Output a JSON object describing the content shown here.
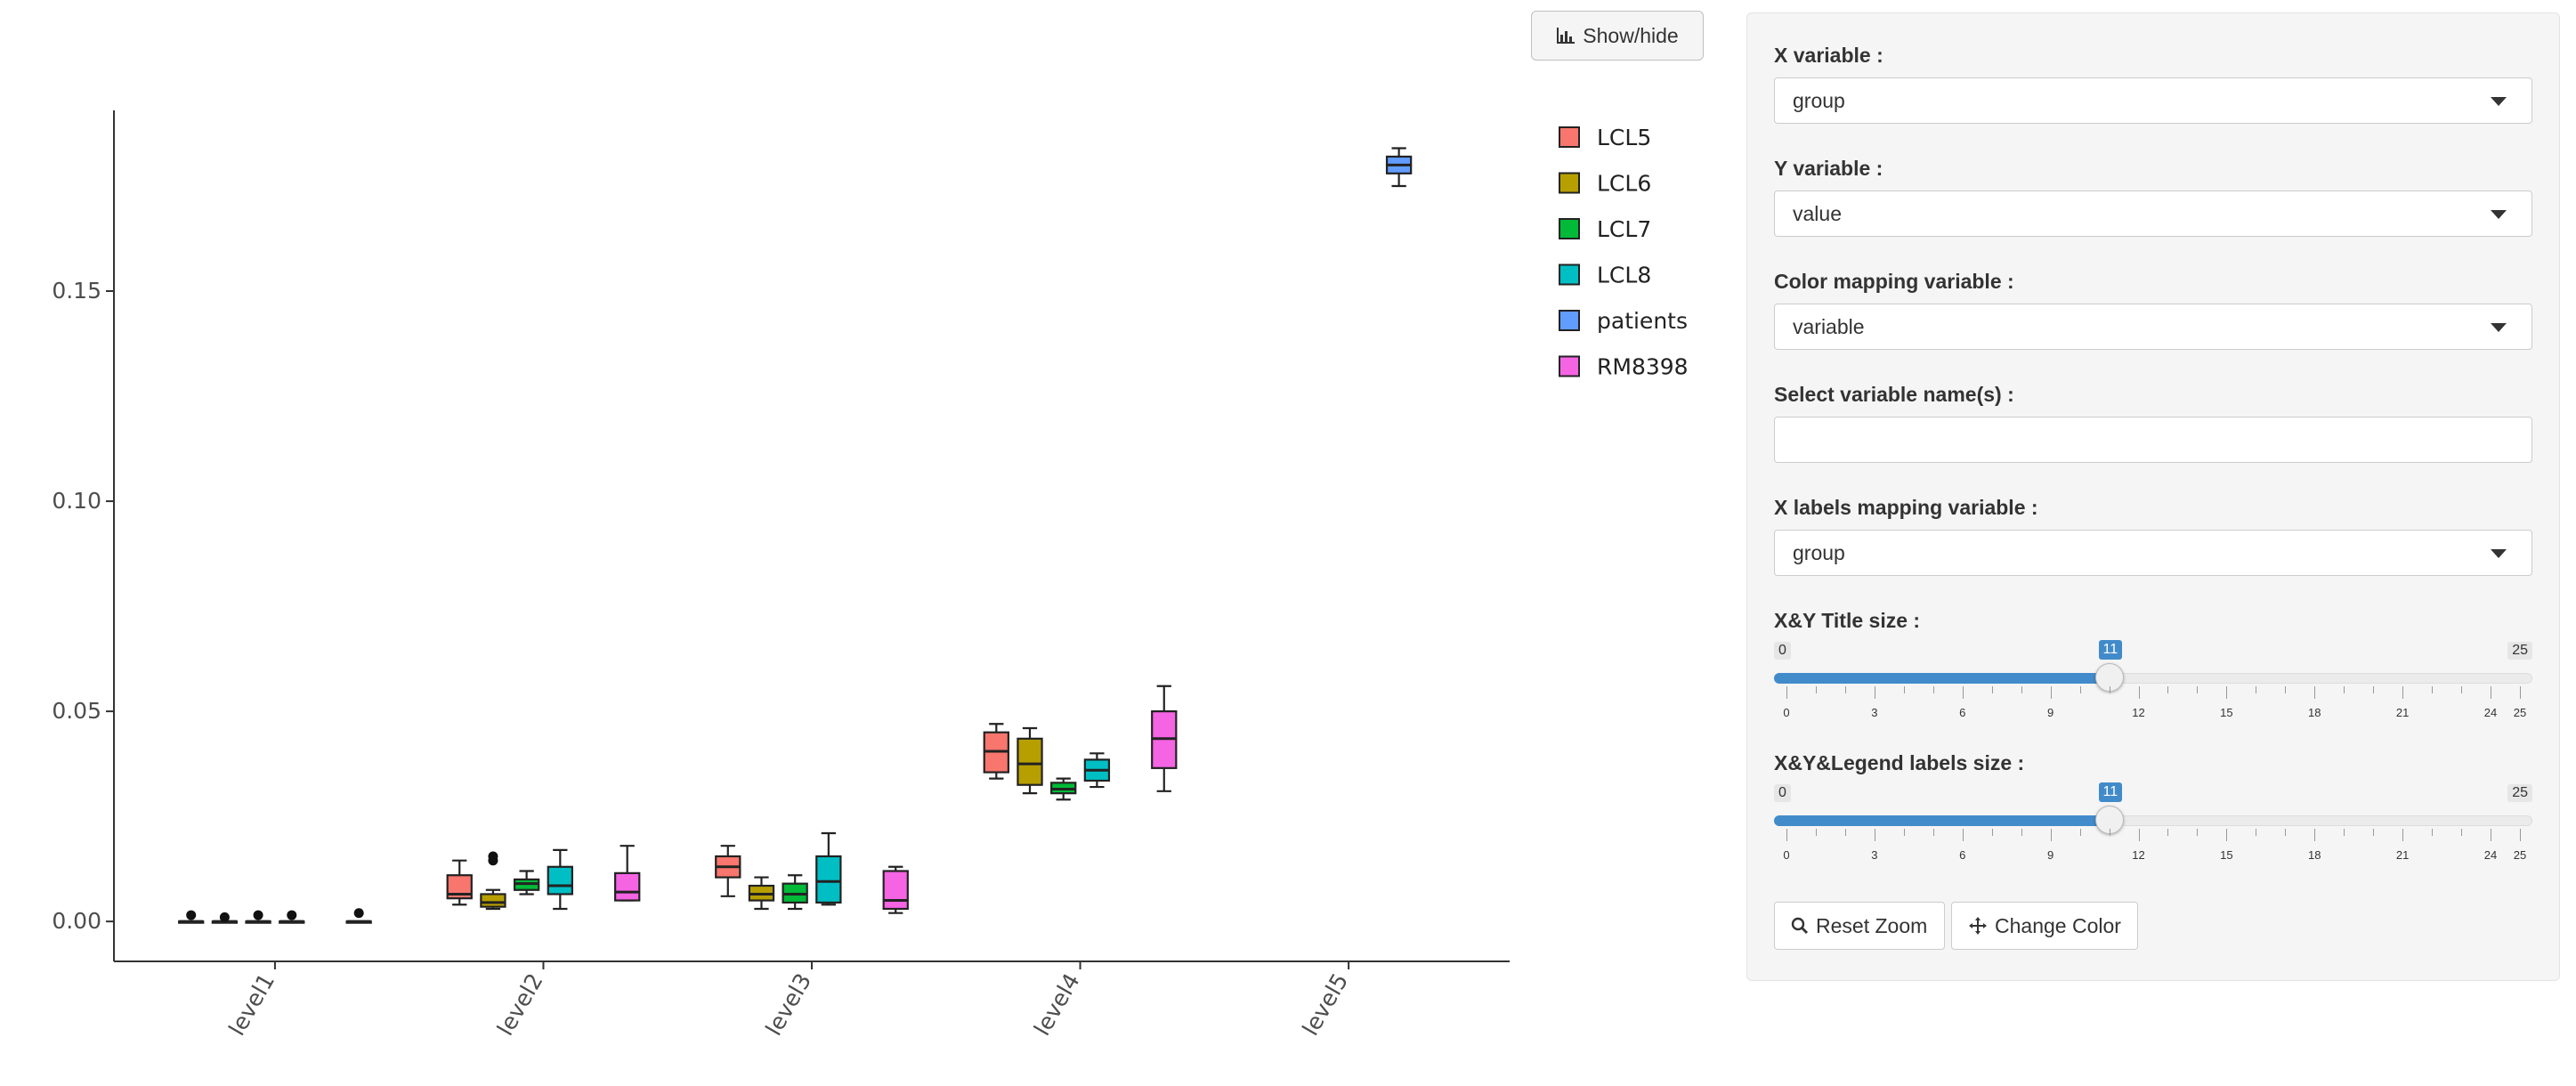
{
  "chart_data": {
    "type": "box",
    "categories": [
      "level1",
      "level2",
      "level3",
      "level4",
      "level5"
    ],
    "ylim": [
      -0.0095,
      0.193
    ],
    "y_ticks": [
      "0.00",
      "0.05",
      "0.10",
      "0.15"
    ],
    "y_tick_values": [
      0,
      0.05,
      0.1,
      0.15
    ],
    "xlabel": "",
    "ylabel": "",
    "legend": {
      "position": "right",
      "entries": [
        "LCL5",
        "LCL6",
        "LCL7",
        "LCL8",
        "patients",
        "RM8398"
      ]
    },
    "series": [
      {
        "name": "LCL5",
        "color": "#F8766D",
        "boxes": [
          {
            "category": "level1",
            "whisker_low": 0.0,
            "q1": 0.0,
            "median": 0.0,
            "q3": 0.0,
            "whisker_high": 0.0,
            "outliers": [
              0.0015
            ]
          },
          {
            "category": "level2",
            "whisker_low": 0.004,
            "q1": 0.0055,
            "median": 0.0065,
            "q3": 0.011,
            "whisker_high": 0.0145,
            "outliers": []
          },
          {
            "category": "level3",
            "whisker_low": 0.006,
            "q1": 0.0105,
            "median": 0.013,
            "q3": 0.0155,
            "whisker_high": 0.018,
            "outliers": []
          },
          {
            "category": "level4",
            "whisker_low": 0.034,
            "q1": 0.0355,
            "median": 0.0405,
            "q3": 0.045,
            "whisker_high": 0.047,
            "outliers": []
          }
        ]
      },
      {
        "name": "LCL6",
        "color": "#B79F00",
        "boxes": [
          {
            "category": "level1",
            "whisker_low": 0.0,
            "q1": 0.0,
            "median": 0.0,
            "q3": 0.0,
            "whisker_high": 0.0,
            "outliers": [
              0.001
            ]
          },
          {
            "category": "level2",
            "whisker_low": 0.003,
            "q1": 0.0035,
            "median": 0.0045,
            "q3": 0.0065,
            "whisker_high": 0.0075,
            "outliers": [
              0.0145,
              0.0155
            ]
          },
          {
            "category": "level3",
            "whisker_low": 0.003,
            "q1": 0.005,
            "median": 0.0065,
            "q3": 0.0085,
            "whisker_high": 0.0105,
            "outliers": []
          },
          {
            "category": "level4",
            "whisker_low": 0.0305,
            "q1": 0.0325,
            "median": 0.0375,
            "q3": 0.0435,
            "whisker_high": 0.046,
            "outliers": []
          }
        ]
      },
      {
        "name": "LCL7",
        "color": "#00BA38",
        "boxes": [
          {
            "category": "level1",
            "whisker_low": 0.0,
            "q1": 0.0,
            "median": 0.0,
            "q3": 0.0,
            "whisker_high": 0.0,
            "outliers": [
              0.0015
            ]
          },
          {
            "category": "level2",
            "whisker_low": 0.0065,
            "q1": 0.0075,
            "median": 0.009,
            "q3": 0.01,
            "whisker_high": 0.012,
            "outliers": []
          },
          {
            "category": "level3",
            "whisker_low": 0.003,
            "q1": 0.0045,
            "median": 0.0065,
            "q3": 0.009,
            "whisker_high": 0.011,
            "outliers": []
          },
          {
            "category": "level4",
            "whisker_low": 0.029,
            "q1": 0.0305,
            "median": 0.0315,
            "q3": 0.033,
            "whisker_high": 0.034,
            "outliers": []
          }
        ]
      },
      {
        "name": "LCL8",
        "color": "#00BFC4",
        "boxes": [
          {
            "category": "level1",
            "whisker_low": 0.0,
            "q1": 0.0,
            "median": 0.0,
            "q3": 0.0,
            "whisker_high": 0.0,
            "outliers": [
              0.0015
            ]
          },
          {
            "category": "level2",
            "whisker_low": 0.003,
            "q1": 0.0065,
            "median": 0.0085,
            "q3": 0.013,
            "whisker_high": 0.017,
            "outliers": []
          },
          {
            "category": "level3",
            "whisker_low": 0.004,
            "q1": 0.0045,
            "median": 0.0095,
            "q3": 0.0155,
            "whisker_high": 0.021,
            "outliers": []
          },
          {
            "category": "level4",
            "whisker_low": 0.032,
            "q1": 0.0335,
            "median": 0.036,
            "q3": 0.0385,
            "whisker_high": 0.04,
            "outliers": []
          }
        ]
      },
      {
        "name": "patients",
        "color": "#619CFF",
        "boxes": [
          {
            "category": "level5",
            "whisker_low": 0.175,
            "q1": 0.178,
            "median": 0.18,
            "q3": 0.182,
            "whisker_high": 0.184,
            "outliers": []
          }
        ]
      },
      {
        "name": "RM8398",
        "color": "#F564E3",
        "boxes": [
          {
            "category": "level1",
            "whisker_low": 0.0,
            "q1": 0.0,
            "median": 0.0,
            "q3": 0.0,
            "whisker_high": 0.0,
            "outliers": [
              0.002
            ]
          },
          {
            "category": "level2",
            "whisker_low": 0.005,
            "q1": 0.005,
            "median": 0.007,
            "q3": 0.0115,
            "whisker_high": 0.018,
            "outliers": []
          },
          {
            "category": "level3",
            "whisker_low": 0.002,
            "q1": 0.003,
            "median": 0.005,
            "q3": 0.012,
            "whisker_high": 0.013,
            "outliers": []
          },
          {
            "category": "level4",
            "whisker_low": 0.031,
            "q1": 0.0365,
            "median": 0.0435,
            "q3": 0.05,
            "whisker_high": 0.056,
            "outliers": []
          }
        ]
      }
    ]
  },
  "toolbar": {
    "showhide_label": "Show/hide",
    "showhide_icon": "bar-chart-icon"
  },
  "panel": {
    "x_variable": {
      "label": "X variable :",
      "value": "group"
    },
    "y_variable": {
      "label": "Y variable :",
      "value": "value"
    },
    "color_variable": {
      "label": "Color mapping variable :",
      "value": "variable"
    },
    "select_names": {
      "label": "Select variable name(s) :",
      "value": ""
    },
    "xlabels_variable": {
      "label": "X labels mapping variable :",
      "value": "group"
    },
    "title_size": {
      "label": "X&Y Title size :",
      "min": "0",
      "max": "25",
      "value": 11,
      "value_label": "11"
    },
    "labels_size": {
      "label": "X&Y&Legend labels size :",
      "min": "0",
      "max": "25",
      "value": 11,
      "value_label": "11"
    },
    "slider_tick_labels": [
      "0",
      "3",
      "6",
      "9",
      "12",
      "15",
      "18",
      "21",
      "24",
      "25"
    ],
    "reset_zoom": "Reset Zoom",
    "change_color": "Change Color",
    "accent_color": "#428bca"
  }
}
